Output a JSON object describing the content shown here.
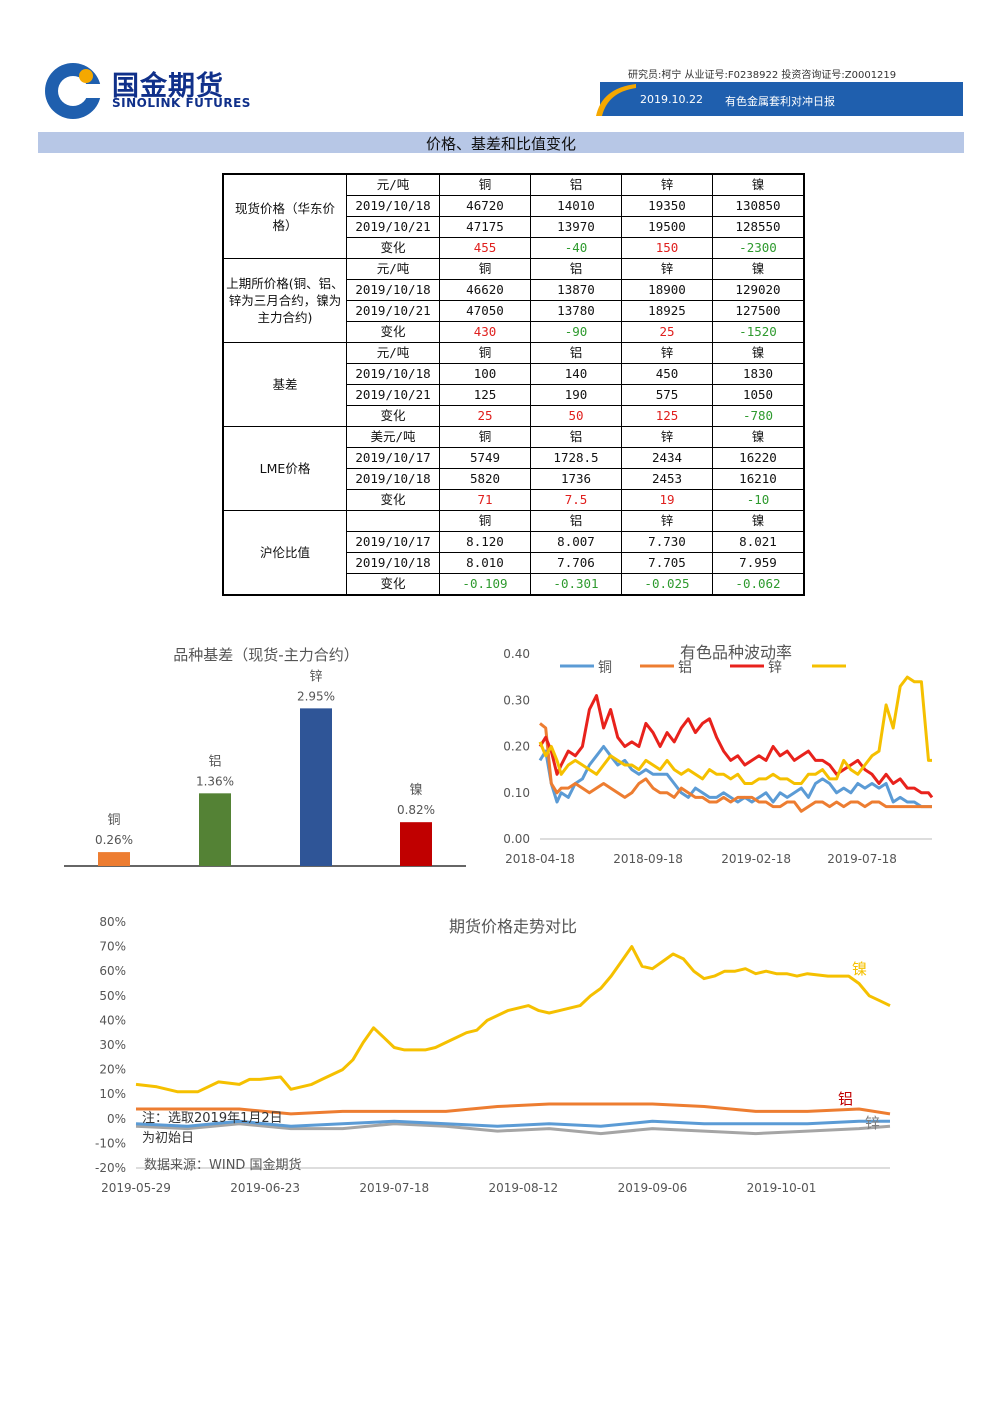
{
  "header": {
    "logo_cn": "国金期货",
    "logo_en": "SINOLINK FUTURES",
    "researcher": "研究员:柯宁  从业证号:F0238922  投资咨询证号:Z0001219",
    "date": "2019.10.22",
    "report_title": "有色金属套利对冲日报",
    "section_title": "价格、基差和比值变化"
  },
  "colors": {
    "copper": "#5b9bd5",
    "aluminum": "#ed7d31",
    "zinc": "#e8221c",
    "nickel": "#f5c000",
    "gray": "#a5a5a5",
    "header_blue": "#1f5fae"
  },
  "table": {
    "groups": [
      {
        "label": "现货价格（华东价格）",
        "rows": [
          [
            "元/吨",
            "铜",
            "铝",
            "锌",
            "镍"
          ],
          [
            "2019/10/18",
            "46720",
            "14010",
            "19350",
            "130850"
          ],
          [
            "2019/10/21",
            "47175",
            "13970",
            "19500",
            "128550"
          ],
          [
            "变化",
            "455",
            "-40",
            "150",
            "-2300"
          ]
        ]
      },
      {
        "label": "上期所价格(铜、铝、锌为三月合约，镍为主力合约)",
        "rows": [
          [
            "元/吨",
            "铜",
            "铝",
            "锌",
            "镍"
          ],
          [
            "2019/10/18",
            "46620",
            "13870",
            "18900",
            "129020"
          ],
          [
            "2019/10/21",
            "47050",
            "13780",
            "18925",
            "127500"
          ],
          [
            "变化",
            "430",
            "-90",
            "25",
            "-1520"
          ]
        ]
      },
      {
        "label": "基差",
        "rows": [
          [
            "元/吨",
            "铜",
            "铝",
            "锌",
            "镍"
          ],
          [
            "2019/10/18",
            "100",
            "140",
            "450",
            "1830"
          ],
          [
            "2019/10/21",
            "125",
            "190",
            "575",
            "1050"
          ],
          [
            "变化",
            "25",
            "50",
            "125",
            "-780"
          ]
        ]
      },
      {
        "label": "LME价格",
        "rows": [
          [
            "美元/吨",
            "铜",
            "铝",
            "锌",
            "镍"
          ],
          [
            "2019/10/17",
            "5749",
            "1728.5",
            "2434",
            "16220"
          ],
          [
            "2019/10/18",
            "5820",
            "1736",
            "2453",
            "16210"
          ],
          [
            "变化",
            "71",
            "7.5",
            "19",
            "-10"
          ]
        ]
      },
      {
        "label": "沪伦比值",
        "rows": [
          [
            "",
            "铜",
            "铝",
            "锌",
            "镍"
          ],
          [
            "2019/10/17",
            "8.120",
            "8.007",
            "7.730",
            "8.021"
          ],
          [
            "2019/10/18",
            "8.010",
            "7.706",
            "7.705",
            "7.959"
          ],
          [
            "变化",
            "-0.109",
            "-0.301",
            "-0.025",
            "-0.062"
          ]
        ]
      }
    ]
  },
  "chart_data": [
    {
      "type": "bar",
      "title": "品种基差（现货-主力合约）",
      "categories": [
        "铜",
        "铝",
        "锌",
        "镍"
      ],
      "values": [
        0.26,
        1.36,
        2.95,
        0.82
      ],
      "labels": [
        "0.26%",
        "1.36%",
        "2.95%",
        "0.82%"
      ],
      "colors": [
        "#ed7d31",
        "#548235",
        "#2f5597",
        "#c00000"
      ],
      "ylim": [
        0,
        3.2
      ]
    },
    {
      "type": "line",
      "title": "有色品种波动率",
      "legend": [
        "铜",
        "铝",
        "锌",
        ""
      ],
      "legend_position": "top",
      "yticks": [
        "0.40",
        "0.30",
        "0.20",
        "0.10",
        "0.00"
      ],
      "ylim": [
        0,
        0.4
      ],
      "xticks": [
        "2018-04-18",
        "2018-09-18",
        "2019-02-18",
        "2019-07-18"
      ],
      "x_index_of_ticks": [
        0,
        153,
        306,
        456
      ],
      "x_max": 555,
      "series": [
        {
          "name": "铜",
          "color": "#5b9bd5",
          "x": [
            0,
            8,
            16,
            24,
            30,
            40,
            50,
            60,
            70,
            80,
            90,
            100,
            110,
            120,
            130,
            140,
            150,
            160,
            170,
            180,
            190,
            200,
            210,
            220,
            230,
            240,
            250,
            260,
            270,
            280,
            290,
            300,
            310,
            320,
            330,
            340,
            350,
            360,
            370,
            380,
            390,
            400,
            410,
            420,
            430,
            440,
            450,
            460,
            470,
            480,
            490,
            500,
            510,
            520,
            530,
            540,
            550,
            555
          ],
          "y": [
            0.17,
            0.19,
            0.12,
            0.08,
            0.1,
            0.09,
            0.12,
            0.13,
            0.16,
            0.18,
            0.2,
            0.18,
            0.16,
            0.17,
            0.15,
            0.14,
            0.15,
            0.14,
            0.14,
            0.14,
            0.12,
            0.1,
            0.09,
            0.11,
            0.1,
            0.09,
            0.09,
            0.1,
            0.09,
            0.08,
            0.09,
            0.08,
            0.09,
            0.1,
            0.08,
            0.1,
            0.09,
            0.1,
            0.11,
            0.09,
            0.12,
            0.13,
            0.12,
            0.1,
            0.11,
            0.1,
            0.12,
            0.11,
            0.12,
            0.11,
            0.12,
            0.08,
            0.09,
            0.08,
            0.08,
            0.07,
            0.07,
            0.07
          ]
        },
        {
          "name": "铝",
          "color": "#ed7d31",
          "x": [
            0,
            8,
            16,
            24,
            30,
            40,
            50,
            60,
            70,
            80,
            90,
            100,
            110,
            120,
            130,
            140,
            150,
            160,
            170,
            180,
            190,
            200,
            210,
            220,
            230,
            240,
            250,
            260,
            270,
            280,
            290,
            300,
            310,
            320,
            330,
            340,
            350,
            360,
            370,
            380,
            390,
            400,
            410,
            420,
            430,
            440,
            450,
            460,
            470,
            480,
            490,
            500,
            510,
            520,
            530,
            540,
            550,
            555
          ],
          "y": [
            0.25,
            0.24,
            0.12,
            0.1,
            0.11,
            0.11,
            0.12,
            0.11,
            0.1,
            0.11,
            0.12,
            0.11,
            0.1,
            0.09,
            0.1,
            0.12,
            0.13,
            0.11,
            0.1,
            0.1,
            0.09,
            0.11,
            0.1,
            0.09,
            0.09,
            0.08,
            0.08,
            0.09,
            0.08,
            0.09,
            0.09,
            0.09,
            0.08,
            0.08,
            0.07,
            0.07,
            0.08,
            0.08,
            0.06,
            0.07,
            0.08,
            0.08,
            0.07,
            0.08,
            0.07,
            0.08,
            0.08,
            0.07,
            0.08,
            0.08,
            0.07,
            0.07,
            0.07,
            0.07,
            0.07,
            0.07,
            0.07,
            0.07
          ]
        },
        {
          "name": "锌",
          "color": "#e8221c",
          "x": [
            0,
            8,
            16,
            24,
            30,
            40,
            50,
            60,
            70,
            80,
            90,
            100,
            110,
            120,
            130,
            140,
            150,
            160,
            170,
            180,
            190,
            200,
            210,
            220,
            230,
            240,
            250,
            260,
            270,
            280,
            290,
            300,
            310,
            320,
            330,
            340,
            350,
            360,
            370,
            380,
            390,
            400,
            410,
            420,
            430,
            440,
            450,
            460,
            470,
            480,
            490,
            500,
            510,
            520,
            530,
            540,
            550,
            555
          ],
          "y": [
            0.2,
            0.22,
            0.19,
            0.14,
            0.16,
            0.19,
            0.18,
            0.2,
            0.28,
            0.31,
            0.24,
            0.28,
            0.22,
            0.2,
            0.21,
            0.2,
            0.25,
            0.23,
            0.2,
            0.23,
            0.21,
            0.24,
            0.26,
            0.23,
            0.25,
            0.26,
            0.22,
            0.19,
            0.17,
            0.18,
            0.16,
            0.17,
            0.18,
            0.17,
            0.2,
            0.18,
            0.19,
            0.17,
            0.18,
            0.19,
            0.17,
            0.17,
            0.16,
            0.14,
            0.15,
            0.16,
            0.17,
            0.15,
            0.14,
            0.12,
            0.14,
            0.12,
            0.13,
            0.11,
            0.11,
            0.1,
            0.1,
            0.09
          ]
        },
        {
          "name": "",
          "color": "#f5c000",
          "x": [
            0,
            8,
            16,
            24,
            30,
            40,
            50,
            60,
            70,
            80,
            90,
            100,
            110,
            120,
            130,
            140,
            150,
            160,
            170,
            180,
            190,
            200,
            210,
            220,
            230,
            240,
            250,
            260,
            270,
            280,
            290,
            300,
            310,
            320,
            330,
            340,
            350,
            360,
            370,
            380,
            390,
            400,
            410,
            420,
            430,
            440,
            450,
            460,
            470,
            480,
            490,
            500,
            510,
            520,
            530,
            540,
            550,
            555
          ],
          "y": [
            0.21,
            0.18,
            0.2,
            0.17,
            0.14,
            0.16,
            0.17,
            0.16,
            0.15,
            0.14,
            0.16,
            0.18,
            0.17,
            0.16,
            0.16,
            0.15,
            0.17,
            0.16,
            0.15,
            0.17,
            0.15,
            0.14,
            0.15,
            0.14,
            0.13,
            0.15,
            0.14,
            0.14,
            0.13,
            0.14,
            0.12,
            0.12,
            0.13,
            0.13,
            0.14,
            0.13,
            0.13,
            0.12,
            0.12,
            0.14,
            0.14,
            0.15,
            0.13,
            0.13,
            0.17,
            0.15,
            0.14,
            0.16,
            0.18,
            0.19,
            0.29,
            0.24,
            0.33,
            0.35,
            0.34,
            0.34,
            0.17,
            0.17
          ]
        }
      ]
    },
    {
      "type": "line",
      "title": "期货价格走势对比",
      "yticks": [
        "80%",
        "70%",
        "60%",
        "50%",
        "40%",
        "30%",
        "20%",
        "10%",
        "0%",
        "-10%",
        "-20%"
      ],
      "ylim": [
        -20,
        80
      ],
      "xticks": [
        "2019-05-29",
        "2019-06-23",
        "2019-07-18",
        "2019-08-12",
        "2019-09-06",
        "2019-10-01"
      ],
      "x_index_of_ticks": [
        0,
        25,
        50,
        75,
        100,
        125
      ],
      "x_max": 146,
      "annotation_note": "注：选取2019年1月2日为初始日",
      "annotation_source": "数据来源：WIND 国金期货",
      "series_labels": [
        "镍",
        "铝",
        "锌"
      ],
      "series": [
        {
          "name": "镍",
          "color": "#f5c000",
          "x": [
            0,
            4,
            8,
            12,
            16,
            20,
            22,
            24,
            28,
            30,
            34,
            36,
            40,
            42,
            44,
            46,
            48,
            50,
            52,
            56,
            58,
            60,
            62,
            64,
            66,
            68,
            70,
            72,
            74,
            76,
            78,
            80,
            82,
            84,
            86,
            88,
            90,
            92,
            94,
            96,
            98,
            100,
            102,
            104,
            106,
            108,
            110,
            112,
            114,
            116,
            118,
            120,
            122,
            124,
            126,
            128,
            130,
            134,
            138,
            140,
            142,
            144,
            146
          ],
          "y": [
            14,
            13,
            11,
            11,
            15,
            14,
            16,
            16,
            17,
            12,
            14,
            16,
            20,
            24,
            31,
            37,
            33,
            29,
            28,
            28,
            29,
            31,
            33,
            35,
            36,
            40,
            42,
            44,
            45,
            46,
            44,
            43,
            44,
            45,
            46,
            50,
            53,
            58,
            64,
            70,
            62,
            61,
            64,
            67,
            65,
            60,
            57,
            58,
            60,
            60,
            61,
            59,
            60,
            59,
            59,
            58,
            59,
            58,
            58,
            55,
            50,
            48,
            46
          ]
        },
        {
          "name": "铝",
          "color": "#ed7d31",
          "x": [
            0,
            10,
            20,
            30,
            40,
            50,
            60,
            70,
            80,
            90,
            100,
            110,
            120,
            130,
            140,
            146
          ],
          "y": [
            4,
            4,
            4,
            2,
            3,
            3,
            3,
            5,
            6,
            6,
            6,
            5,
            3,
            3,
            4,
            2
          ]
        },
        {
          "name": "锌",
          "color": "#a5a5a5",
          "x": [
            0,
            10,
            20,
            30,
            40,
            50,
            60,
            70,
            80,
            90,
            100,
            110,
            120,
            130,
            140,
            146
          ],
          "y": [
            -3,
            -4,
            -2,
            -4,
            -4,
            -2,
            -3,
            -5,
            -4,
            -6,
            -4,
            -5,
            -6,
            -5,
            -4,
            -3
          ]
        },
        {
          "name": "铜",
          "color": "#5b9bd5",
          "x": [
            0,
            10,
            20,
            30,
            40,
            50,
            60,
            70,
            80,
            90,
            100,
            110,
            120,
            130,
            140,
            146
          ],
          "y": [
            -2,
            -3,
            -1,
            -3,
            -2,
            -1,
            -2,
            -3,
            -2,
            -3,
            -1,
            -2,
            -2,
            -2,
            -1,
            -1
          ]
        }
      ]
    }
  ]
}
